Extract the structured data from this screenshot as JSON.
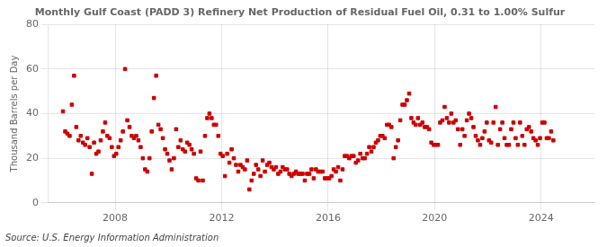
{
  "chart_data": {
    "type": "scatter",
    "title": "Monthly Gulf Coast (PADD 3) Refinery Net Production of Residual Fuel Oil, 0.31 to 1.00% Sulfur",
    "ylabel": "Thousand Barrels per Day",
    "annotations": [
      "Source: U.S. Energy Information Administration"
    ],
    "color": "#cc0000",
    "marker": "square",
    "grid": true,
    "xlim": [
      2005.5,
      2026.0
    ],
    "xticks": [
      2008,
      2012,
      2016,
      2020,
      2024
    ],
    "ylim": [
      0,
      80
    ],
    "yticks": [
      0,
      20,
      40,
      60,
      80
    ],
    "x": [
      2006.0416666666667,
      2006.125,
      2006.2083333333333,
      2006.2916666666667,
      2006.375,
      2006.4583333333333,
      2006.5416666666667,
      2006.625,
      2006.7083333333333,
      2006.7916666666667,
      2006.875,
      2006.9583333333333,
      2007.0416666666667,
      2007.125,
      2007.2083333333333,
      2007.2916666666667,
      2007.375,
      2007.4583333333333,
      2007.5416666666667,
      2007.625,
      2007.7083333333333,
      2007.7916666666667,
      2007.875,
      2007.9583333333333,
      2008.0416666666667,
      2008.125,
      2008.2083333333333,
      2008.2916666666667,
      2008.375,
      2008.4583333333333,
      2008.5416666666667,
      2008.625,
      2008.7083333333333,
      2008.7916666666667,
      2008.875,
      2008.9583333333333,
      2009.0416666666667,
      2009.125,
      2009.2083333333333,
      2009.2916666666667,
      2009.375,
      2009.4583333333333,
      2009.5416666666667,
      2009.625,
      2009.7083333333333,
      2009.7916666666667,
      2009.875,
      2009.9583333333333,
      2010.0416666666667,
      2010.125,
      2010.2083333333333,
      2010.2916666666667,
      2010.375,
      2010.4583333333333,
      2010.5416666666667,
      2010.625,
      2010.7083333333333,
      2010.7916666666667,
      2010.875,
      2010.9583333333333,
      2011.0416666666667,
      2011.125,
      2011.2083333333333,
      2011.2916666666667,
      2011.375,
      2011.4583333333333,
      2011.5416666666667,
      2011.625,
      2011.7083333333333,
      2011.7916666666667,
      2011.875,
      2011.9583333333333,
      2012.0416666666667,
      2012.125,
      2012.2083333333333,
      2012.2916666666667,
      2012.375,
      2012.4583333333333,
      2012.5416666666667,
      2012.625,
      2012.7083333333333,
      2012.7916666666667,
      2012.875,
      2012.9583333333333,
      2013.0416666666667,
      2013.125,
      2013.2083333333333,
      2013.2916666666667,
      2013.375,
      2013.4583333333333,
      2013.5416666666667,
      2013.625,
      2013.7083333333333,
      2013.7916666666667,
      2013.875,
      2013.9583333333333,
      2014.0416666666667,
      2014.125,
      2014.2083333333333,
      2014.2916666666667,
      2014.375,
      2014.4583333333333,
      2014.5416666666667,
      2014.625,
      2014.7083333333333,
      2014.7916666666667,
      2014.875,
      2014.9583333333333,
      2015.0416666666667,
      2015.125,
      2015.2083333333333,
      2015.2916666666667,
      2015.375,
      2015.4583333333333,
      2015.5416666666667,
      2015.625,
      2015.7083333333333,
      2015.7916666666667,
      2015.875,
      2015.9583333333333,
      2016.0416666666667,
      2016.125,
      2016.2083333333333,
      2016.2916666666667,
      2016.375,
      2016.4583333333333,
      2016.5416666666667,
      2016.625,
      2016.7083333333333,
      2016.7916666666667,
      2016.875,
      2016.9583333333333,
      2017.0416666666667,
      2017.125,
      2017.2083333333333,
      2017.2916666666667,
      2017.375,
      2017.4583333333333,
      2017.5416666666667,
      2017.625,
      2017.7083333333333,
      2017.7916666666667,
      2017.875,
      2017.9583333333333,
      2018.0416666666667,
      2018.125,
      2018.2083333333333,
      2018.2916666666667,
      2018.375,
      2018.4583333333333,
      2018.5416666666667,
      2018.625,
      2018.7083333333333,
      2018.7916666666667,
      2018.875,
      2018.9583333333333,
      2019.0416666666667,
      2019.125,
      2019.2083333333333,
      2019.2916666666667,
      2019.375,
      2019.4583333333333,
      2019.5416666666667,
      2019.625,
      2019.7083333333333,
      2019.7916666666667,
      2019.875,
      2019.9583333333333,
      2020.0416666666667,
      2020.125,
      2020.2083333333333,
      2020.2916666666667,
      2020.375,
      2020.4583333333333,
      2020.5416666666667,
      2020.625,
      2020.7083333333333,
      2020.7916666666667,
      2020.875,
      2020.9583333333333,
      2021.0416666666667,
      2021.125,
      2021.2083333333333,
      2021.2916666666667,
      2021.375,
      2021.4583333333333,
      2021.5416666666667,
      2021.625,
      2021.7083333333333,
      2021.7916666666667,
      2021.875,
      2021.9583333333333,
      2022.0416666666667,
      2022.125,
      2022.2083333333333,
      2022.2916666666667,
      2022.375,
      2022.4583333333333,
      2022.5416666666667,
      2022.625,
      2022.7083333333333,
      2022.7916666666667,
      2022.875,
      2022.9583333333333,
      2023.0416666666667,
      2023.125,
      2023.2083333333333,
      2023.2916666666667,
      2023.375,
      2023.4583333333333,
      2023.5416666666667,
      2023.625,
      2023.7083333333333,
      2023.7916666666667,
      2023.875,
      2023.9583333333333,
      2024.0416666666667,
      2024.125,
      2024.2083333333333,
      2024.2916666666667,
      2024.375,
      2024.4583333333333
    ],
    "values": [
      41,
      32,
      31,
      30,
      44,
      57,
      34,
      28,
      30,
      27,
      26,
      29,
      25,
      13,
      27,
      22,
      23,
      28,
      32,
      36,
      30,
      29,
      25,
      21,
      22,
      25,
      28,
      32,
      60,
      37,
      34,
      30,
      29,
      30,
      28,
      25,
      20,
      15,
      14,
      20,
      32,
      47,
      57,
      35,
      33,
      29,
      24,
      22,
      19,
      15,
      20,
      33,
      25,
      28,
      24,
      23,
      27,
      26,
      24,
      22,
      11,
      10,
      23,
      10,
      30,
      38,
      40,
      38,
      35,
      35,
      30,
      22,
      21,
      12,
      22,
      18,
      24,
      20,
      17,
      14,
      17,
      16,
      15,
      19,
      6,
      10,
      13,
      17,
      15,
      12,
      19,
      14,
      17,
      18,
      16,
      15,
      16,
      13,
      14,
      16,
      15,
      15,
      13,
      12,
      13,
      14,
      13,
      13,
      13,
      10,
      13,
      13,
      15,
      11,
      15,
      14,
      14,
      14,
      11,
      11,
      11,
      12,
      15,
      14,
      16,
      10,
      15,
      21,
      21,
      20,
      21,
      21,
      18,
      19,
      22,
      20,
      20,
      22,
      25,
      23,
      25,
      27,
      28,
      30,
      30,
      29,
      35,
      35,
      34,
      20,
      25,
      28,
      37,
      44,
      44,
      46,
      49,
      38,
      36,
      35,
      38,
      35,
      36,
      34,
      34,
      33,
      27,
      26,
      26,
      26,
      36,
      37,
      43,
      38,
      36,
      40,
      36,
      37,
      33,
      26,
      33,
      30,
      37,
      40,
      38,
      34,
      30,
      28,
      26,
      29,
      32,
      36,
      28,
      27,
      36,
      43,
      26,
      33,
      36,
      29,
      26,
      26,
      33,
      36,
      29,
      26,
      36,
      30,
      26,
      33,
      34,
      32,
      29,
      28,
      26,
      29,
      36,
      36,
      29,
      29,
      32,
      28
    ]
  }
}
